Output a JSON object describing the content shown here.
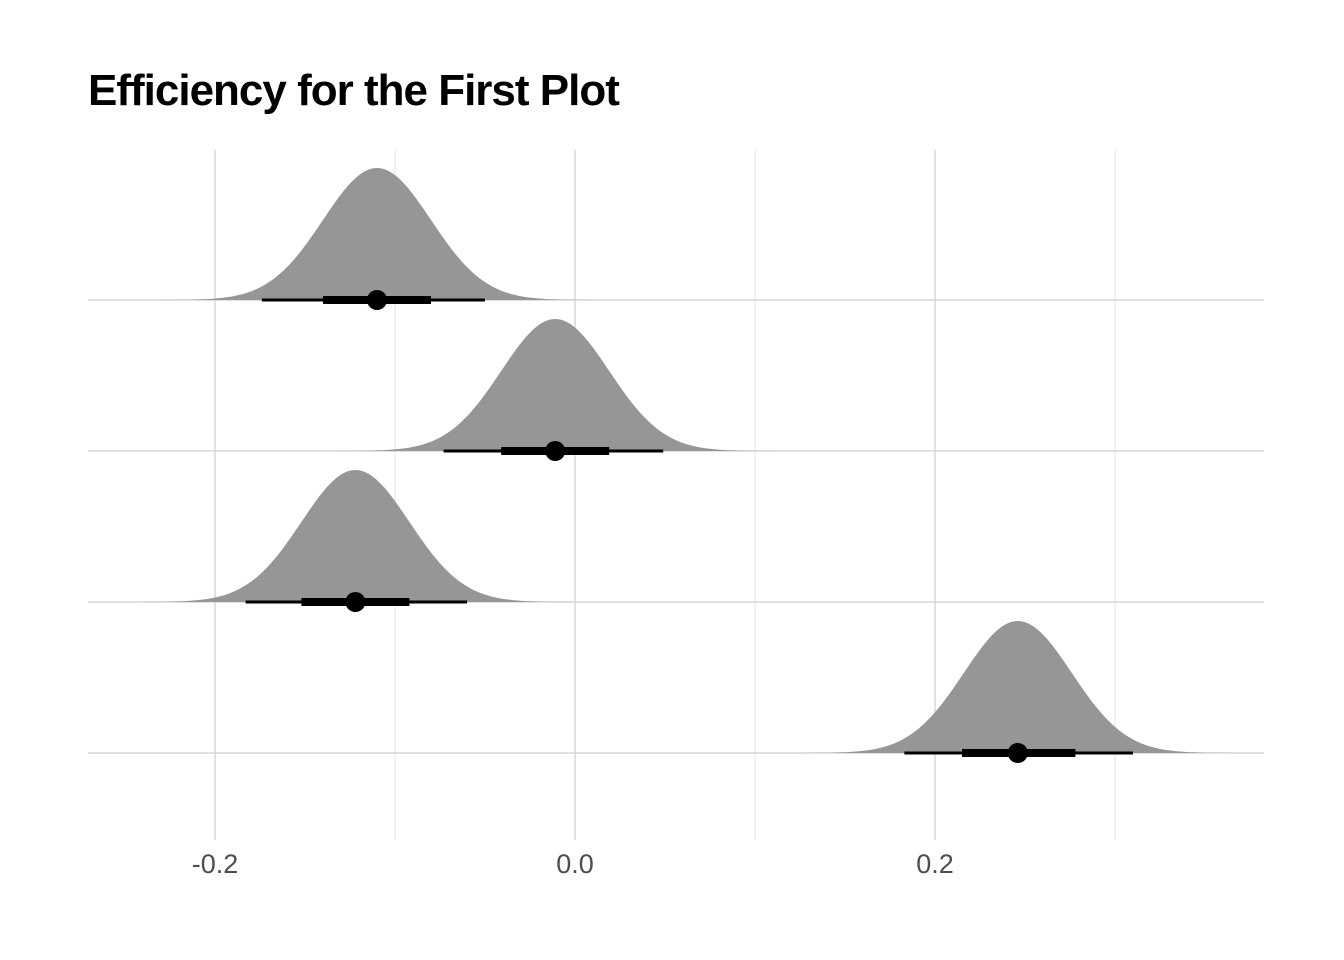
{
  "title": "Efficiency for the First Plot",
  "colors": {
    "density_fill": "#969696",
    "interval": "#000000",
    "grid_major": "#cfcfcf",
    "grid_minor": "#e3e3e3",
    "tick_text": "#4d4d4d"
  },
  "chart_data": {
    "type": "halfeye",
    "title": "Efficiency for the First Plot",
    "xlabel": "",
    "ylabel": "",
    "xlim": [
      -0.27,
      0.38
    ],
    "x_ticks": [
      -0.2,
      0.0,
      0.2
    ],
    "x_tick_labels": [
      "-0.2",
      "0.0",
      "0.2"
    ],
    "x_minor_ticks": [
      -0.1,
      0.1,
      0.3
    ],
    "grid": true,
    "legend": "none",
    "series": [
      {
        "mean": -0.11,
        "sd": 0.03,
        "interval_66": [
          -0.14,
          -0.08
        ],
        "interval_95": [
          -0.174,
          -0.05
        ]
      },
      {
        "mean": -0.011,
        "sd": 0.03,
        "interval_66": [
          -0.041,
          0.019
        ],
        "interval_95": [
          -0.073,
          0.049
        ]
      },
      {
        "mean": -0.122,
        "sd": 0.03,
        "interval_66": [
          -0.152,
          -0.092
        ],
        "interval_95": [
          -0.183,
          -0.06
        ]
      },
      {
        "mean": 0.246,
        "sd": 0.03,
        "interval_66": [
          0.215,
          0.278
        ],
        "interval_95": [
          0.183,
          0.31
        ]
      }
    ]
  }
}
